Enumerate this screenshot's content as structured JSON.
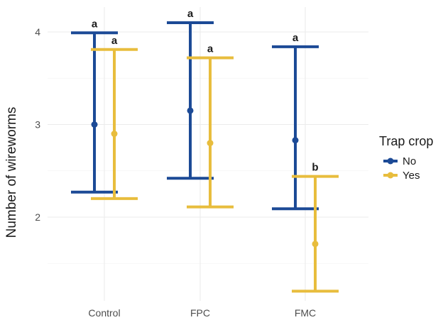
{
  "chart_data": {
    "type": "scatter",
    "ylabel": "Number of wireworms",
    "xlabel": "",
    "categories": [
      "Control",
      "FPC",
      "FMC"
    ],
    "y_ticks": [
      "2",
      "3",
      "4"
    ],
    "ylim": [
      1.0,
      4.2
    ],
    "legend": {
      "title": "Trap crop",
      "position": "right"
    },
    "grid": true,
    "series": [
      {
        "name": "No",
        "color": "#1c4a96",
        "points": [
          {
            "category": "Control",
            "mean": 3.0,
            "lower": 2.27,
            "upper": 3.99,
            "label": "a"
          },
          {
            "category": "FPC",
            "mean": 3.15,
            "lower": 2.42,
            "upper": 4.1,
            "label": "a"
          },
          {
            "category": "FMC",
            "mean": 2.83,
            "lower": 2.09,
            "upper": 3.84,
            "label": "a"
          }
        ]
      },
      {
        "name": "Yes",
        "color": "#e8bd3d",
        "points": [
          {
            "category": "Control",
            "mean": 2.9,
            "lower": 2.2,
            "upper": 3.81,
            "label": "a"
          },
          {
            "category": "FPC",
            "mean": 2.8,
            "lower": 2.11,
            "upper": 3.72,
            "label": "a"
          },
          {
            "category": "FMC",
            "mean": 1.71,
            "lower": 1.2,
            "upper": 2.44,
            "label": "b"
          }
        ]
      }
    ]
  }
}
